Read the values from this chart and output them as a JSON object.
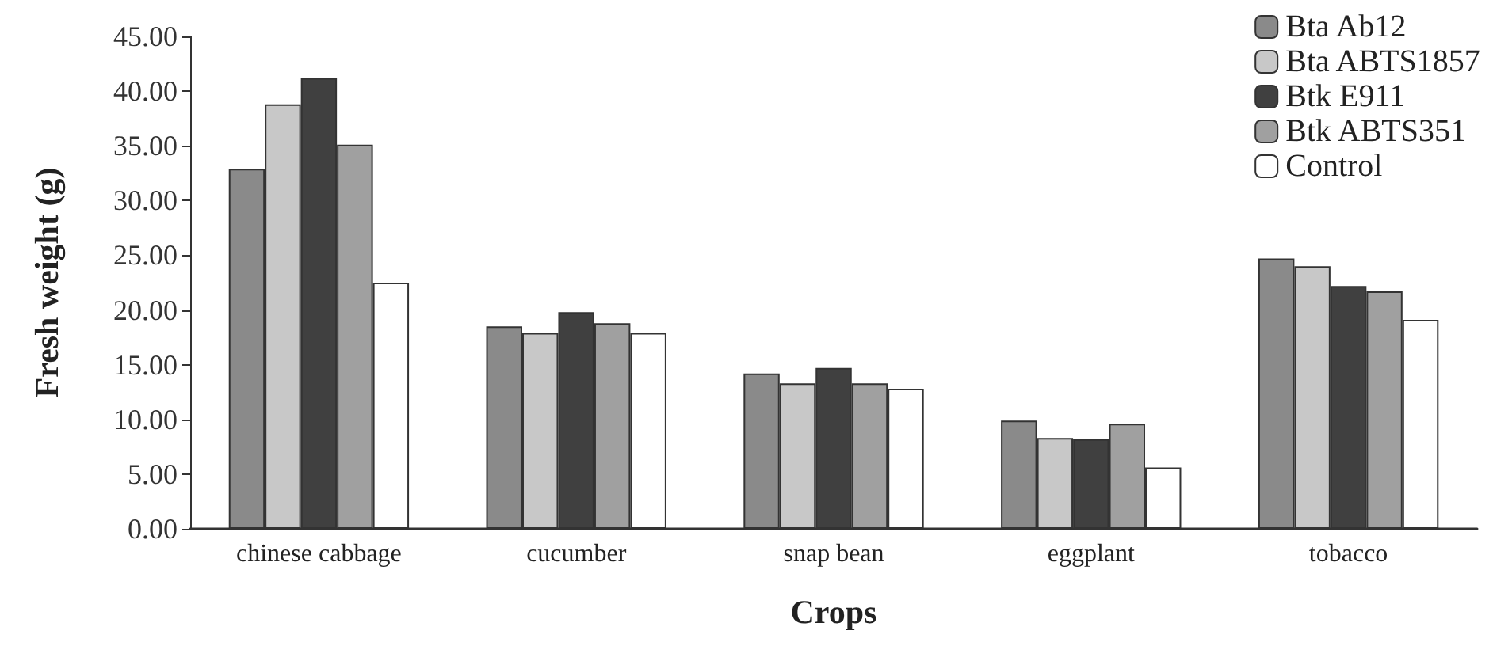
{
  "chart_data": {
    "type": "bar",
    "xlabel": "Crops",
    "ylabel": "Fresh weight (g)",
    "categories": [
      "chinese cabbage",
      "cucumber",
      "snap bean",
      "eggplant",
      "tobacco"
    ],
    "series": [
      {
        "name": "Bta Ab12",
        "color": "#8a8a8a",
        "values": [
          32.9,
          18.5,
          14.2,
          9.9,
          24.7
        ]
      },
      {
        "name": "Bta ABTS1857",
        "color": "#c8c8c8",
        "values": [
          38.8,
          17.9,
          13.3,
          8.3,
          24.0
        ]
      },
      {
        "name": "Btk E911",
        "color": "#404040",
        "values": [
          41.2,
          19.8,
          14.7,
          8.2,
          22.2
        ]
      },
      {
        "name": "Btk ABTS351",
        "color": "#a0a0a0",
        "values": [
          35.1,
          18.8,
          13.3,
          9.6,
          21.7
        ]
      },
      {
        "name": "Control",
        "color": "#ffffff",
        "values": [
          22.5,
          17.9,
          12.8,
          5.6,
          19.1
        ]
      }
    ],
    "ylim": [
      0,
      45
    ],
    "yticks": [
      {
        "value": 0,
        "label": "0.00"
      },
      {
        "value": 5,
        "label": "5.00"
      },
      {
        "value": 10,
        "label": "10.00"
      },
      {
        "value": 15,
        "label": "15.00"
      },
      {
        "value": 20,
        "label": "20.00"
      },
      {
        "value": 25,
        "label": "25.00"
      },
      {
        "value": 30,
        "label": "30.00"
      },
      {
        "value": 35,
        "label": "35.00"
      },
      {
        "value": 40,
        "label": "40.00"
      },
      {
        "value": 45,
        "label": "45.00"
      }
    ],
    "grid": false,
    "legend": "top right"
  }
}
